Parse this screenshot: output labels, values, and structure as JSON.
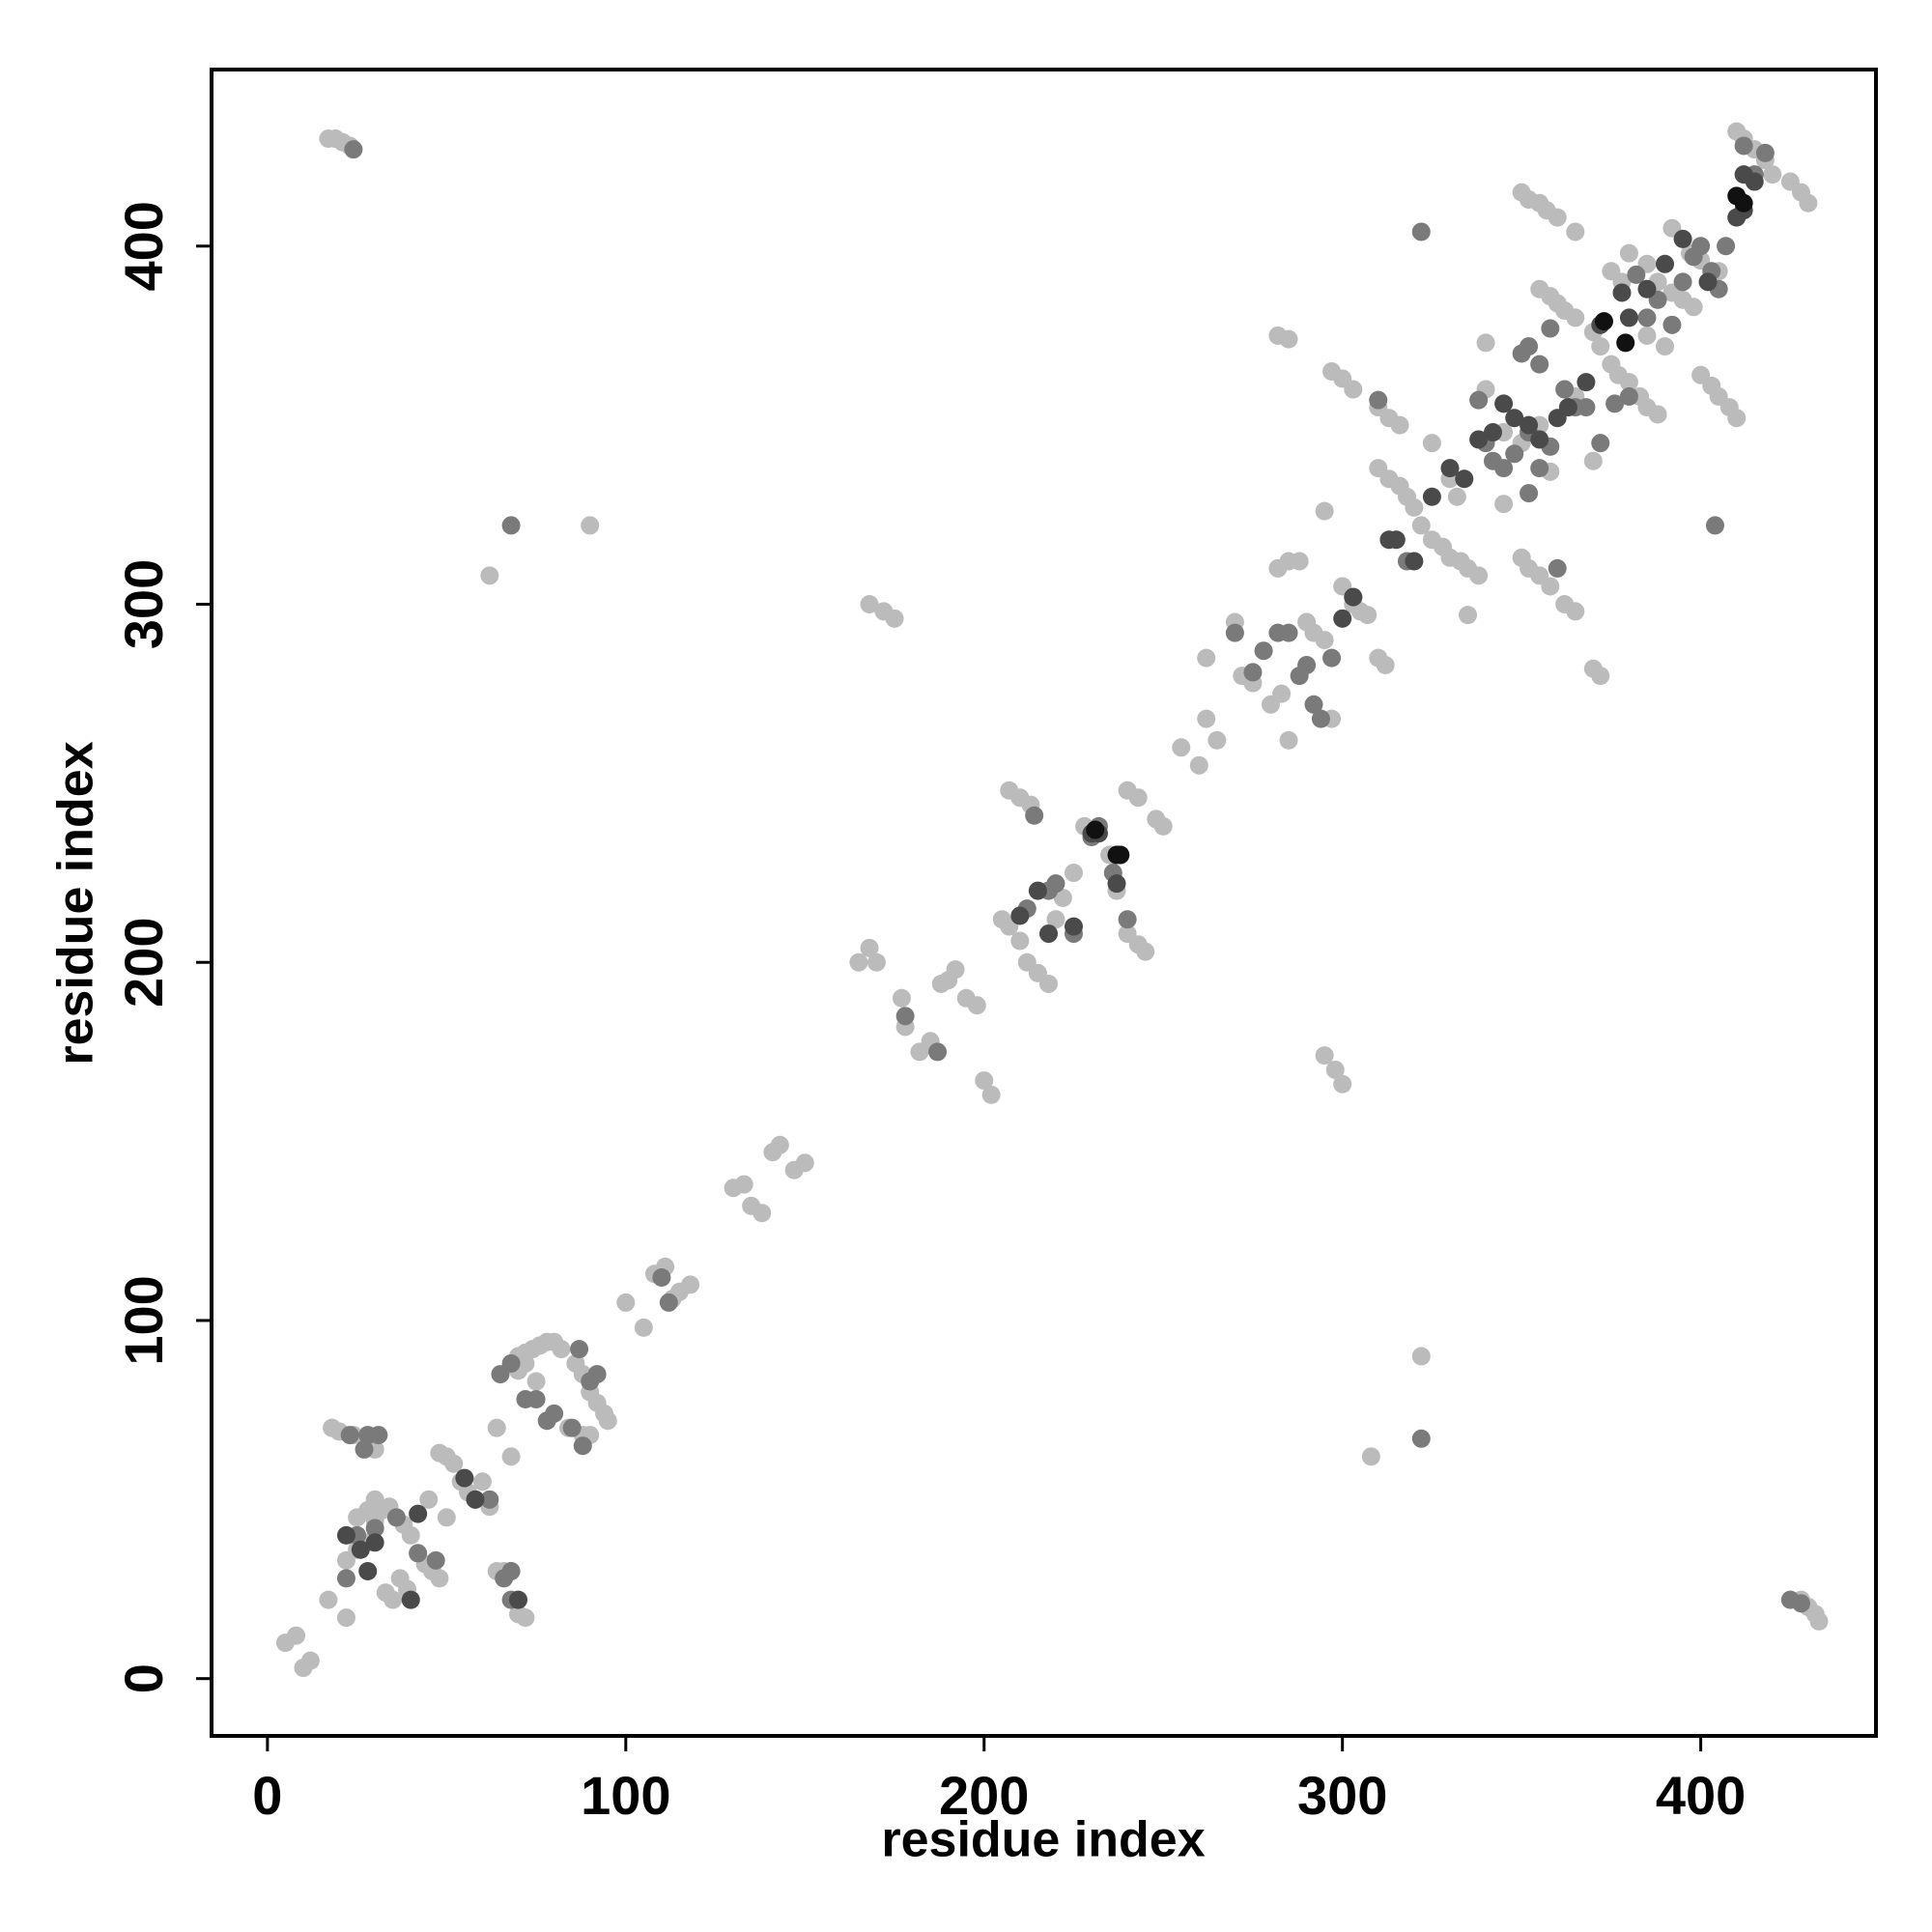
{
  "chart_data": {
    "type": "scatter",
    "x_label": "residue index",
    "y_label": "residue index",
    "xlim": [
      -15.6,
      448.9
    ],
    "ylim": [
      -16,
      449.3
    ],
    "xticks": [
      0,
      100,
      200,
      300,
      400
    ],
    "yticks": [
      0,
      100,
      200,
      300,
      400
    ],
    "series": [
      {
        "color": "#bbbbbb",
        "x": [
          5,
          8,
          10,
          12,
          18,
          20,
          24,
          28,
          30,
          17,
          22,
          22,
          25,
          28,
          30,
          32,
          34,
          36,
          38,
          40,
          42,
          44,
          46,
          48,
          33,
          35,
          37,
          39,
          28,
          30,
          48,
          50,
          52,
          54,
          56,
          58,
          62,
          64,
          66,
          68,
          70,
          72,
          68,
          64,
          60,
          70,
          72,
          74,
          76,
          78,
          80,
          82,
          86,
          88,
          90,
          92,
          94,
          95,
          90,
          88,
          84,
          72,
          70,
          75,
          25,
          40,
          45,
          50,
          100,
          105,
          108,
          111,
          113,
          115,
          118,
          130,
          133,
          135,
          138,
          141,
          143,
          147,
          150,
          62,
          90,
          17,
          19,
          21,
          23,
          165,
          168,
          170,
          177,
          178,
          182,
          185,
          188,
          190,
          192,
          195,
          198,
          200,
          202,
          205,
          207,
          210,
          212,
          215,
          218,
          220,
          222,
          225,
          228,
          230,
          235,
          237,
          240,
          243,
          245,
          207,
          210,
          213,
          240,
          243,
          248,
          250,
          255,
          260,
          262,
          265,
          262,
          168,
          172,
          175,
          295,
          298,
          300,
          322,
          308,
          270,
          272,
          275,
          280,
          283,
          285,
          282,
          285,
          288,
          290,
          292,
          295,
          297,
          300,
          303,
          305,
          307,
          310,
          312,
          295,
          297,
          300,
          303,
          282,
          285,
          310,
          313,
          316,
          310,
          313,
          316,
          318,
          320,
          322,
          325,
          328,
          330,
          333,
          335,
          338,
          325,
          330,
          332,
          335,
          345,
          350,
          352,
          355,
          358,
          362,
          365,
          370,
          372,
          370,
          358,
          350,
          340,
          345,
          355,
          350,
          352,
          355,
          357,
          360,
          365,
          355,
          358,
          360,
          362,
          365,
          370,
          372,
          375,
          377,
          380,
          383,
          385,
          388,
          385,
          388,
          392,
          395,
          398,
          400,
          403,
          405,
          408,
          410,
          392,
          395,
          397,
          400,
          405,
          410,
          412,
          415,
          418,
          420,
          425,
          428,
          430,
          340,
          365,
          375,
          378,
          385,
          390,
          380,
          428,
          430,
          432,
          433
        ],
        "values": [
          10,
          12,
          3,
          5,
          70,
          69,
          68,
          66,
          64,
          22,
          17,
          33,
          36,
          38,
          44,
          47,
          48,
          45,
          43,
          40,
          35,
          32,
          30,
          28,
          24,
          22,
          28,
          25,
          47,
          50,
          63,
          62,
          60,
          55,
          52,
          50,
          48,
          30,
          30,
          30,
          18,
          17,
          62,
          70,
          55,
          90,
          91,
          92,
          93,
          94,
          94,
          92,
          88,
          85,
          80,
          77,
          74,
          72,
          68,
          68,
          70,
          88,
          86,
          83,
          45,
          22,
          50,
          45,
          105,
          98,
          113,
          115,
          106,
          108,
          110,
          137,
          138,
          132,
          130,
          147,
          149,
          142,
          144,
          308,
          322,
          430,
          430,
          429,
          428,
          200,
          204,
          200,
          190,
          182,
          175,
          178,
          194,
          195,
          198,
          190,
          188,
          167,
          163,
          212,
          210,
          206,
          200,
          197,
          194,
          212,
          218,
          225,
          238,
          235,
          230,
          220,
          208,
          205,
          203,
          248,
          246,
          244,
          248,
          246,
          240,
          238,
          260,
          255,
          268,
          262,
          285,
          300,
          298,
          296,
          174,
          170,
          166,
          90,
          62,
          295,
          280,
          278,
          272,
          275,
          262,
          310,
          312,
          312,
          295,
          292,
          290,
          268,
          305,
          300,
          298,
          297,
          285,
          283,
          326,
          365,
          363,
          360,
          375,
          374,
          355,
          352,
          350,
          338,
          335,
          333,
          330,
          327,
          322,
          318,
          316,
          313,
          312,
          310,
          308,
          345,
          335,
          330,
          297,
          328,
          313,
          310,
          308,
          305,
          300,
          298,
          282,
          280,
          340,
          337,
          345,
          373,
          348,
          350,
          415,
          413,
          412,
          410,
          408,
          404,
          388,
          386,
          384,
          382,
          380,
          376,
          372,
          367,
          364,
          362,
          358,
          355,
          353,
          395,
          390,
          387,
          385,
          383,
          364,
          361,
          358,
          355,
          352,
          405,
          402,
          398,
          396,
          393,
          432,
          430,
          427,
          424,
          420,
          418,
          415,
          412,
          360,
          358,
          393,
          390,
          375,
          372,
          398,
          22,
          20,
          18,
          16
        ]
      },
      {
        "color": "#7a7a7a",
        "x": [
          23,
          27,
          28,
          31,
          22,
          25,
          30,
          36,
          42,
          47,
          62,
          66,
          68,
          68,
          65,
          68,
          72,
          75,
          78,
          80,
          85,
          88,
          90,
          92,
          87,
          110,
          112,
          68,
          24,
          178,
          187,
          214,
          218,
          220,
          212,
          225,
          230,
          232,
          236,
          240,
          270,
          275,
          278,
          282,
          285,
          288,
          290,
          292,
          294,
          297,
          303,
          310,
          318,
          322,
          322,
          340,
          342,
          345,
          348,
          352,
          355,
          358,
          350,
          352,
          355,
          358,
          362,
          365,
          368,
          372,
          376,
          380,
          385,
          388,
          392,
          395,
          398,
          400,
          403,
          407,
          405,
          412,
          415,
          418,
          425,
          428,
          352,
          360,
          382,
          404,
          338
        ],
        "values": [
          68,
          64,
          68,
          68,
          28,
          40,
          42,
          45,
          35,
          33,
          50,
          28,
          22,
          30,
          85,
          88,
          78,
          78,
          72,
          74,
          70,
          65,
          83,
          85,
          92,
          112,
          105,
          322,
          427,
          185,
          175,
          241,
          220,
          222,
          215,
          208,
          235,
          238,
          225,
          212,
          292,
          281,
          287,
          292,
          292,
          280,
          283,
          272,
          268,
          285,
          302,
          357,
          312,
          404,
          67,
          345,
          340,
          338,
          342,
          348,
          338,
          344,
          370,
          372,
          367,
          377,
          360,
          355,
          355,
          345,
          356,
          358,
          380,
          385,
          378,
          390,
          397,
          400,
          393,
          400,
          388,
          428,
          420,
          426,
          22,
          21,
          331,
          310,
          392,
          322,
          357
        ]
      },
      {
        "color": "#4a4a4a",
        "x": [
          22,
          26,
          28,
          30,
          40,
          42,
          55,
          58,
          70,
          210,
          215,
          218,
          225,
          230,
          232,
          237,
          238,
          300,
          303,
          313,
          315,
          320,
          325,
          330,
          334,
          338,
          342,
          345,
          348,
          352,
          355,
          360,
          363,
          368,
          372,
          378,
          380,
          385,
          390,
          395,
          402,
          410,
          412,
          415,
          412
        ],
        "values": [
          40,
          36,
          30,
          38,
          22,
          46,
          56,
          50,
          22,
          213,
          220,
          208,
          210,
          236,
          236,
          222,
          230,
          296,
          302,
          318,
          318,
          312,
          330,
          338,
          335,
          346,
          348,
          356,
          352,
          350,
          346,
          352,
          355,
          362,
          378,
          387,
          380,
          388,
          395,
          402,
          390,
          408,
          410,
          418,
          420
        ]
      },
      {
        "color": "#111111",
        "x": [
          231,
          237,
          238,
          373,
          379,
          410,
          412
        ],
        "values": [
          237,
          230,
          230,
          379,
          373,
          414,
          412
        ]
      }
    ]
  }
}
